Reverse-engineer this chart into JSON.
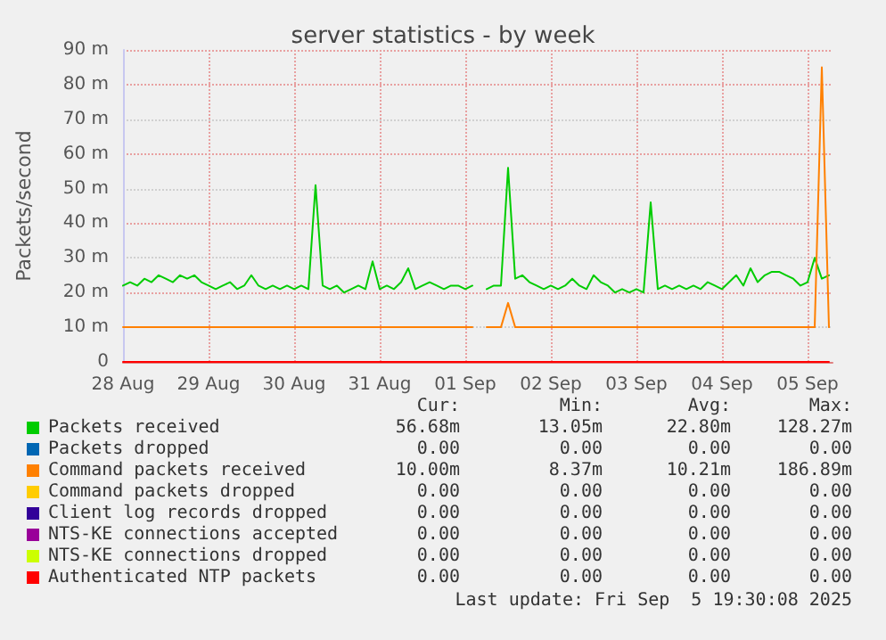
{
  "chart_data": {
    "type": "line",
    "title": "server statistics - by week",
    "ylabel": "Packets/second",
    "x": [
      "2025-08-28T00:00",
      "2025-08-28T02:00",
      "2025-08-28T04:00",
      "2025-08-28T06:00",
      "2025-08-28T08:00",
      "2025-08-28T10:00",
      "2025-08-28T12:00",
      "2025-08-28T14:00",
      "2025-08-28T16:00",
      "2025-08-28T18:00",
      "2025-08-28T20:00",
      "2025-08-28T22:00",
      "2025-08-29T00:00",
      "2025-08-29T02:00",
      "2025-08-29T04:00",
      "2025-08-29T06:00",
      "2025-08-29T08:00",
      "2025-08-29T10:00",
      "2025-08-29T12:00",
      "2025-08-29T14:00",
      "2025-08-29T16:00",
      "2025-08-29T18:00",
      "2025-08-29T20:00",
      "2025-08-29T22:00",
      "2025-08-30T00:00",
      "2025-08-30T02:00",
      "2025-08-30T04:00",
      "2025-08-30T06:00",
      "2025-08-30T08:00",
      "2025-08-30T10:00",
      "2025-08-30T12:00",
      "2025-08-30T14:00",
      "2025-08-30T16:00",
      "2025-08-30T18:00",
      "2025-08-30T20:00",
      "2025-08-30T22:00",
      "2025-08-31T00:00",
      "2025-08-31T02:00",
      "2025-08-31T04:00",
      "2025-08-31T06:00",
      "2025-08-31T08:00",
      "2025-08-31T10:00",
      "2025-08-31T12:00",
      "2025-08-31T14:00",
      "2025-08-31T16:00",
      "2025-08-31T18:00",
      "2025-08-31T20:00",
      "2025-08-31T22:00",
      "2025-09-01T00:00",
      "2025-09-01T02:00",
      "2025-09-01T04:00",
      "2025-09-01T06:00",
      "2025-09-01T08:00",
      "2025-09-01T10:00",
      "2025-09-01T12:00",
      "2025-09-01T14:00",
      "2025-09-01T16:00",
      "2025-09-01T18:00",
      "2025-09-01T20:00",
      "2025-09-01T22:00",
      "2025-09-02T00:00",
      "2025-09-02T02:00",
      "2025-09-02T04:00",
      "2025-09-02T06:00",
      "2025-09-02T08:00",
      "2025-09-02T10:00",
      "2025-09-02T12:00",
      "2025-09-02T14:00",
      "2025-09-02T16:00",
      "2025-09-02T18:00",
      "2025-09-02T20:00",
      "2025-09-02T22:00",
      "2025-09-03T00:00",
      "2025-09-03T02:00",
      "2025-09-03T04:00",
      "2025-09-03T06:00",
      "2025-09-03T08:00",
      "2025-09-03T10:00",
      "2025-09-03T12:00",
      "2025-09-03T14:00",
      "2025-09-03T16:00",
      "2025-09-03T18:00",
      "2025-09-03T20:00",
      "2025-09-03T22:00",
      "2025-09-04T00:00",
      "2025-09-04T02:00",
      "2025-09-04T04:00",
      "2025-09-04T06:00",
      "2025-09-04T08:00",
      "2025-09-04T10:00",
      "2025-09-04T12:00",
      "2025-09-04T14:00",
      "2025-09-04T16:00",
      "2025-09-04T18:00",
      "2025-09-04T20:00",
      "2025-09-04T22:00",
      "2025-09-05T00:00",
      "2025-09-05T02:00",
      "2025-09-05T04:00",
      "2025-09-05T06:00"
    ],
    "series": [
      {
        "name": "Packets received",
        "color": "#00cc00",
        "values": [
          22,
          23,
          22,
          24,
          23,
          25,
          24,
          23,
          25,
          24,
          25,
          23,
          22,
          21,
          22,
          23,
          21,
          22,
          25,
          22,
          21,
          22,
          21,
          22,
          21,
          22,
          21,
          51,
          22,
          21,
          22,
          20,
          21,
          22,
          21,
          29,
          21,
          22,
          21,
          23,
          27,
          21,
          22,
          23,
          22,
          21,
          22,
          22,
          21,
          22,
          null,
          21,
          22,
          22,
          56,
          24,
          25,
          23,
          22,
          21,
          22,
          21,
          22,
          24,
          22,
          21,
          25,
          23,
          22,
          20,
          21,
          20,
          21,
          20,
          46,
          21,
          22,
          21,
          22,
          21,
          22,
          21,
          23,
          22,
          21,
          23,
          25,
          22,
          27,
          23,
          25,
          26,
          26,
          25,
          24,
          22,
          23,
          30,
          24,
          25
        ]
      },
      {
        "name": "Packets dropped",
        "color": "#0066b3",
        "values": [
          null,
          null,
          null,
          null,
          null,
          null,
          null,
          null,
          null,
          null,
          null,
          null,
          null,
          null,
          null,
          null,
          null,
          null,
          null,
          null,
          null,
          null,
          null,
          null,
          null,
          null,
          null,
          null,
          null,
          null,
          null,
          null,
          null,
          null,
          null,
          null,
          null,
          null,
          null,
          null,
          null,
          null,
          null,
          null,
          null,
          null,
          null,
          null,
          null,
          null,
          null,
          null,
          null,
          null,
          null,
          null,
          null,
          null,
          null,
          null,
          null,
          null,
          null,
          null,
          null,
          null,
          null,
          null,
          null,
          null,
          null,
          null,
          null,
          null,
          null,
          null,
          null,
          null,
          null,
          null,
          null,
          null,
          null,
          null,
          null,
          null,
          null,
          null,
          null,
          null,
          null,
          null,
          null,
          null,
          null,
          null,
          null,
          null,
          null,
          null
        ]
      },
      {
        "name": "Command packets received",
        "color": "#ff8000",
        "values": [
          10,
          10,
          10,
          10,
          10,
          10,
          10,
          10,
          10,
          10,
          10,
          10,
          10,
          10,
          10,
          10,
          10,
          10,
          10,
          10,
          10,
          10,
          10,
          10,
          10,
          10,
          10,
          10,
          10,
          10,
          10,
          10,
          10,
          10,
          10,
          10,
          10,
          10,
          10,
          10,
          10,
          10,
          10,
          10,
          10,
          10,
          10,
          10,
          10,
          10,
          null,
          10,
          10,
          10,
          17,
          10,
          10,
          10,
          10,
          10,
          10,
          10,
          10,
          10,
          10,
          10,
          10,
          10,
          10,
          10,
          10,
          10,
          10,
          10,
          10,
          10,
          10,
          10,
          10,
          10,
          10,
          10,
          10,
          10,
          10,
          10,
          10,
          10,
          10,
          10,
          10,
          10,
          10,
          10,
          10,
          10,
          10,
          10,
          85,
          10
        ]
      },
      {
        "name": "Command packets dropped",
        "color": "#ffcc00",
        "values": [
          null,
          null,
          null,
          null,
          null,
          null,
          null,
          null,
          null,
          null,
          null,
          null,
          null,
          null,
          null,
          null,
          null,
          null,
          null,
          null,
          null,
          null,
          null,
          null,
          null,
          null,
          null,
          null,
          null,
          null,
          null,
          null,
          null,
          null,
          null,
          null,
          null,
          null,
          null,
          null,
          null,
          null,
          null,
          null,
          null,
          null,
          null,
          null,
          null,
          null,
          null,
          null,
          null,
          null,
          null,
          null,
          null,
          null,
          null,
          null,
          null,
          null,
          null,
          null,
          null,
          null,
          null,
          null,
          null,
          null,
          null,
          null,
          null,
          null,
          null,
          null,
          null,
          null,
          null,
          null,
          null,
          null,
          null,
          null,
          null,
          null,
          null,
          null,
          null,
          null,
          null,
          null,
          null,
          null,
          null,
          null,
          null,
          null,
          null,
          null
        ]
      },
      {
        "name": "Client log records dropped",
        "color": "#330099",
        "values": [
          null,
          null,
          null,
          null,
          null,
          null,
          null,
          null,
          null,
          null,
          null,
          null,
          null,
          null,
          null,
          null,
          null,
          null,
          null,
          null,
          null,
          null,
          null,
          null,
          null,
          null,
          null,
          null,
          null,
          null,
          null,
          null,
          null,
          null,
          null,
          null,
          null,
          null,
          null,
          null,
          null,
          null,
          null,
          null,
          null,
          null,
          null,
          null,
          null,
          null,
          null,
          null,
          null,
          null,
          null,
          null,
          null,
          null,
          null,
          null,
          null,
          null,
          null,
          null,
          null,
          null,
          null,
          null,
          null,
          null,
          null,
          null,
          null,
          null,
          null,
          null,
          null,
          null,
          null,
          null,
          null,
          null,
          null,
          null,
          null,
          null,
          null,
          null,
          null,
          null,
          null,
          null,
          null,
          null,
          null,
          null,
          null,
          null,
          null,
          null
        ]
      },
      {
        "name": "NTS-KE connections accepted",
        "color": "#990099",
        "values": [
          null,
          null,
          null,
          null,
          null,
          null,
          null,
          null,
          null,
          null,
          null,
          null,
          null,
          null,
          null,
          null,
          null,
          null,
          null,
          null,
          null,
          null,
          null,
          null,
          null,
          null,
          null,
          null,
          null,
          null,
          null,
          null,
          null,
          null,
          null,
          null,
          null,
          null,
          null,
          null,
          null,
          null,
          null,
          null,
          null,
          null,
          null,
          null,
          null,
          null,
          null,
          null,
          null,
          null,
          null,
          null,
          null,
          null,
          null,
          null,
          null,
          null,
          null,
          null,
          null,
          null,
          null,
          null,
          null,
          null,
          null,
          null,
          null,
          null,
          null,
          null,
          null,
          null,
          null,
          null,
          null,
          null,
          null,
          null,
          null,
          null,
          null,
          null,
          null,
          null,
          null,
          null,
          null,
          null,
          null,
          null,
          null,
          null,
          null,
          null
        ]
      },
      {
        "name": "NTS-KE connections dropped",
        "color": "#ccff00",
        "values": [
          null,
          null,
          null,
          null,
          null,
          null,
          null,
          null,
          null,
          null,
          null,
          null,
          null,
          null,
          null,
          null,
          null,
          null,
          null,
          null,
          null,
          null,
          null,
          null,
          null,
          null,
          null,
          null,
          null,
          null,
          null,
          null,
          null,
          null,
          null,
          null,
          null,
          null,
          null,
          null,
          null,
          null,
          null,
          null,
          null,
          null,
          null,
          null,
          null,
          null,
          null,
          null,
          null,
          null,
          null,
          null,
          null,
          null,
          null,
          null,
          null,
          null,
          null,
          null,
          null,
          null,
          null,
          null,
          null,
          null,
          null,
          null,
          null,
          null,
          null,
          null,
          null,
          null,
          null,
          null,
          null,
          null,
          null,
          null,
          null,
          null,
          null,
          null,
          null,
          null,
          null,
          null,
          null,
          null,
          null,
          null,
          null,
          null,
          null,
          null
        ]
      },
      {
        "name": "Authenticated NTP packets",
        "color": "#ff0000",
        "x": [
          "2025-08-28T00:00",
          "2025-09-05T06:00"
        ],
        "values": [
          0,
          0
        ]
      }
    ],
    "xlim": [
      "2025-08-28T00:00",
      "2025-09-05T07:00"
    ],
    "xticks": [
      {
        "value": "2025-08-28T00:00",
        "label": "28 Aug"
      },
      {
        "value": "2025-08-29T00:00",
        "label": "29 Aug"
      },
      {
        "value": "2025-08-30T00:00",
        "label": "30 Aug"
      },
      {
        "value": "2025-08-31T00:00",
        "label": "31 Aug"
      },
      {
        "value": "2025-09-01T00:00",
        "label": "01 Sep"
      },
      {
        "value": "2025-09-02T00:00",
        "label": "02 Sep"
      },
      {
        "value": "2025-09-03T00:00",
        "label": "03 Sep"
      },
      {
        "value": "2025-09-04T00:00",
        "label": "04 Sep"
      },
      {
        "value": "2025-09-05T00:00",
        "label": "05 Sep"
      }
    ],
    "ylim": [
      0,
      90
    ],
    "yticks": [
      0,
      {
        "value": 10,
        "label": "10 m"
      },
      {
        "value": 20,
        "label": "20 m"
      },
      {
        "value": 30,
        "label": "30 m"
      },
      {
        "value": 40,
        "label": "40 m"
      },
      {
        "value": 50,
        "label": "50 m"
      },
      {
        "value": 60,
        "label": "60 m"
      },
      {
        "value": 70,
        "label": "70 m"
      },
      {
        "value": 80,
        "label": "80 m"
      },
      {
        "value": 90,
        "label": "90 m"
      }
    ],
    "grid": true,
    "legend": "bottom",
    "marker": "none",
    "line_style": "solid",
    "annotations": [
      "Cur:",
      "Min:",
      "Avg:",
      "Max:",
      "56.68m",
      "13.05m",
      "22.80m",
      "128.27m",
      "0.00",
      "0.00",
      "0.00",
      "0.00",
      "10.00m",
      "8.37m",
      "10.21m",
      "186.89m",
      "0.00",
      "0.00",
      "0.00",
      "0.00",
      "0.00",
      "0.00",
      "0.00",
      "0.00",
      "0.00",
      "0.00",
      "0.00",
      "0.00",
      "0.00",
      "0.00",
      "0.00",
      "0.00",
      "0.00",
      "0.00",
      "0.00",
      "0.00",
      "Last update: Fri Sep  5 19:30:08 2025"
    ]
  }
}
